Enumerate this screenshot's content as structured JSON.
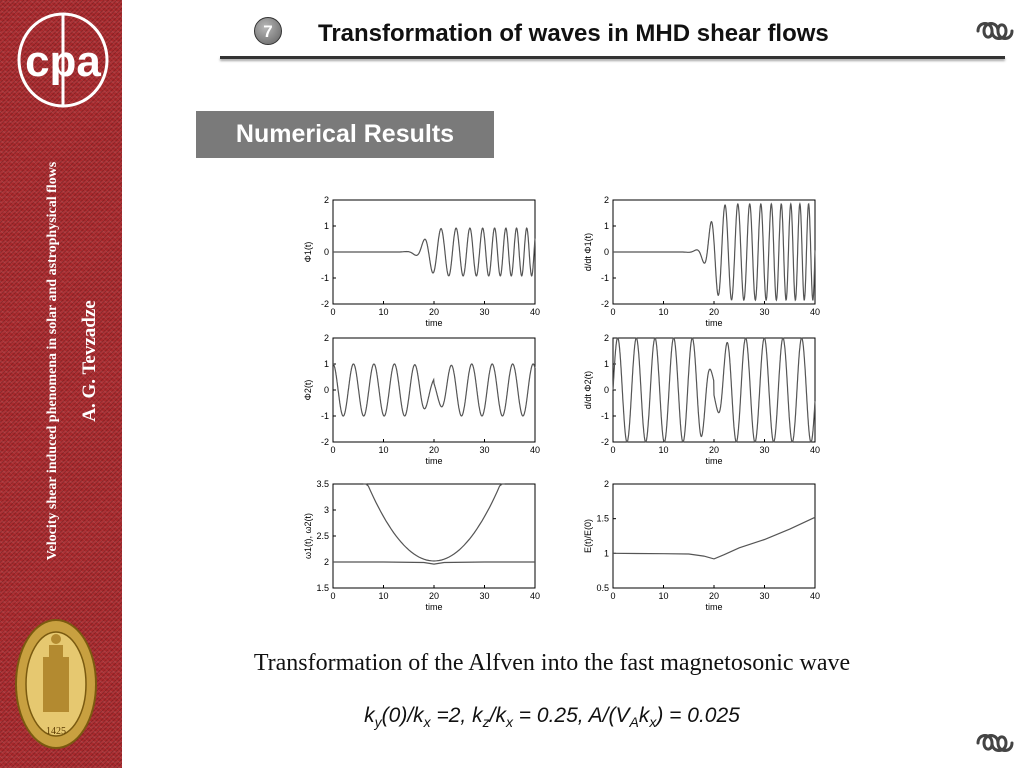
{
  "sidebar": {
    "logo_text": "cpa",
    "vertical_text": "Velocity shear induced phenomena in solar and astrophysical flows",
    "author": "A. G. Tevzadze",
    "seal_year": "1425"
  },
  "header": {
    "slide_number": "7",
    "title": "Transformation of waves in MHD shear flows",
    "ornament_icon": "ornament-scroll-icon"
  },
  "section": {
    "label": "Numerical Results"
  },
  "chart_data": [
    {
      "type": "line",
      "id": "phi1",
      "ylabel": "Φ1(t)",
      "xlabel": "time",
      "xlim": [
        0,
        40
      ],
      "ylim": [
        -2,
        2
      ],
      "xticks": [
        0,
        10,
        20,
        30,
        40
      ],
      "yticks": [
        -2,
        -1,
        0,
        1,
        2
      ],
      "description": "oscillation growing from 0 near t≈15, amplitude ≈0.9 after t≈20, frequency increasing with time"
    },
    {
      "type": "line",
      "id": "dphi1",
      "ylabel": "d/dt Φ1(t)",
      "xlabel": "time",
      "xlim": [
        0,
        40
      ],
      "ylim": [
        -2,
        2
      ],
      "xticks": [
        0,
        10,
        20,
        30,
        40
      ],
      "yticks": [
        -2,
        -1,
        0,
        1,
        2
      ],
      "description": "oscillation growing from 0 near t≈15, amplitude ≈1.8 after t≈20"
    },
    {
      "type": "line",
      "id": "phi2",
      "ylabel": "Φ2(t)",
      "xlabel": "time",
      "xlim": [
        0,
        40
      ],
      "ylim": [
        -2,
        2
      ],
      "xticks": [
        0,
        10,
        20,
        30,
        40
      ],
      "yticks": [
        -2,
        -1,
        0,
        1,
        2
      ],
      "description": "constant-amplitude oscillation ≈1.0, dip near t≈20"
    },
    {
      "type": "line",
      "id": "dphi2",
      "ylabel": "d/dt Φ2(t)",
      "xlabel": "time",
      "xlim": [
        0,
        40
      ],
      "ylim": [
        -2,
        2
      ],
      "xticks": [
        0,
        10,
        20,
        30,
        40
      ],
      "yticks": [
        -2,
        -1,
        0,
        1,
        2
      ],
      "description": "oscillation amplitude ≈2.0, reduced near t≈20"
    },
    {
      "type": "line",
      "id": "omega",
      "ylabel": "ω1(t), ω2(t)",
      "xlabel": "time",
      "xlim": [
        0,
        40
      ],
      "ylim": [
        1.5,
        3.5
      ],
      "xticks": [
        0,
        10,
        20,
        30,
        40
      ],
      "yticks": [
        1.5,
        2,
        2.5,
        3,
        3.5
      ],
      "series": [
        {
          "x": [
            6,
            10,
            15,
            20,
            25,
            30,
            34
          ],
          "y": [
            3.5,
            2.94,
            2.39,
            2.02,
            2.39,
            2.94,
            3.5
          ]
        },
        {
          "x": [
            0,
            10,
            18,
            20,
            22,
            30,
            40
          ],
          "y": [
            2.0,
            2.0,
            1.99,
            1.96,
            1.99,
            2.0,
            2.0
          ]
        }
      ]
    },
    {
      "type": "line",
      "id": "energy",
      "ylabel": "E(t)/E(0)",
      "xlabel": "time",
      "xlim": [
        0,
        40
      ],
      "ylim": [
        0.5,
        2
      ],
      "xticks": [
        0,
        10,
        20,
        30,
        40
      ],
      "yticks": [
        0.5,
        1,
        1.5,
        2
      ],
      "series": [
        {
          "x": [
            0,
            10,
            15,
            18,
            20,
            22,
            25,
            30,
            35,
            40
          ],
          "y": [
            1.0,
            0.995,
            0.99,
            0.96,
            0.92,
            0.98,
            1.08,
            1.2,
            1.35,
            1.52
          ]
        }
      ]
    }
  ],
  "caption": "Transformation of the Alfven into the fast magnetosonic wave",
  "formula": {
    "k1": "k",
    "s1": "y",
    "t1": "(0)/k",
    "s2": "x",
    "t2": " =2, k",
    "s3": "z",
    "t3": "/k",
    "s4": "x",
    "t4": " = 0.25, A/(V",
    "s5": "A",
    "t5": "k",
    "s6": "x",
    "t6": ") = 0.025"
  }
}
